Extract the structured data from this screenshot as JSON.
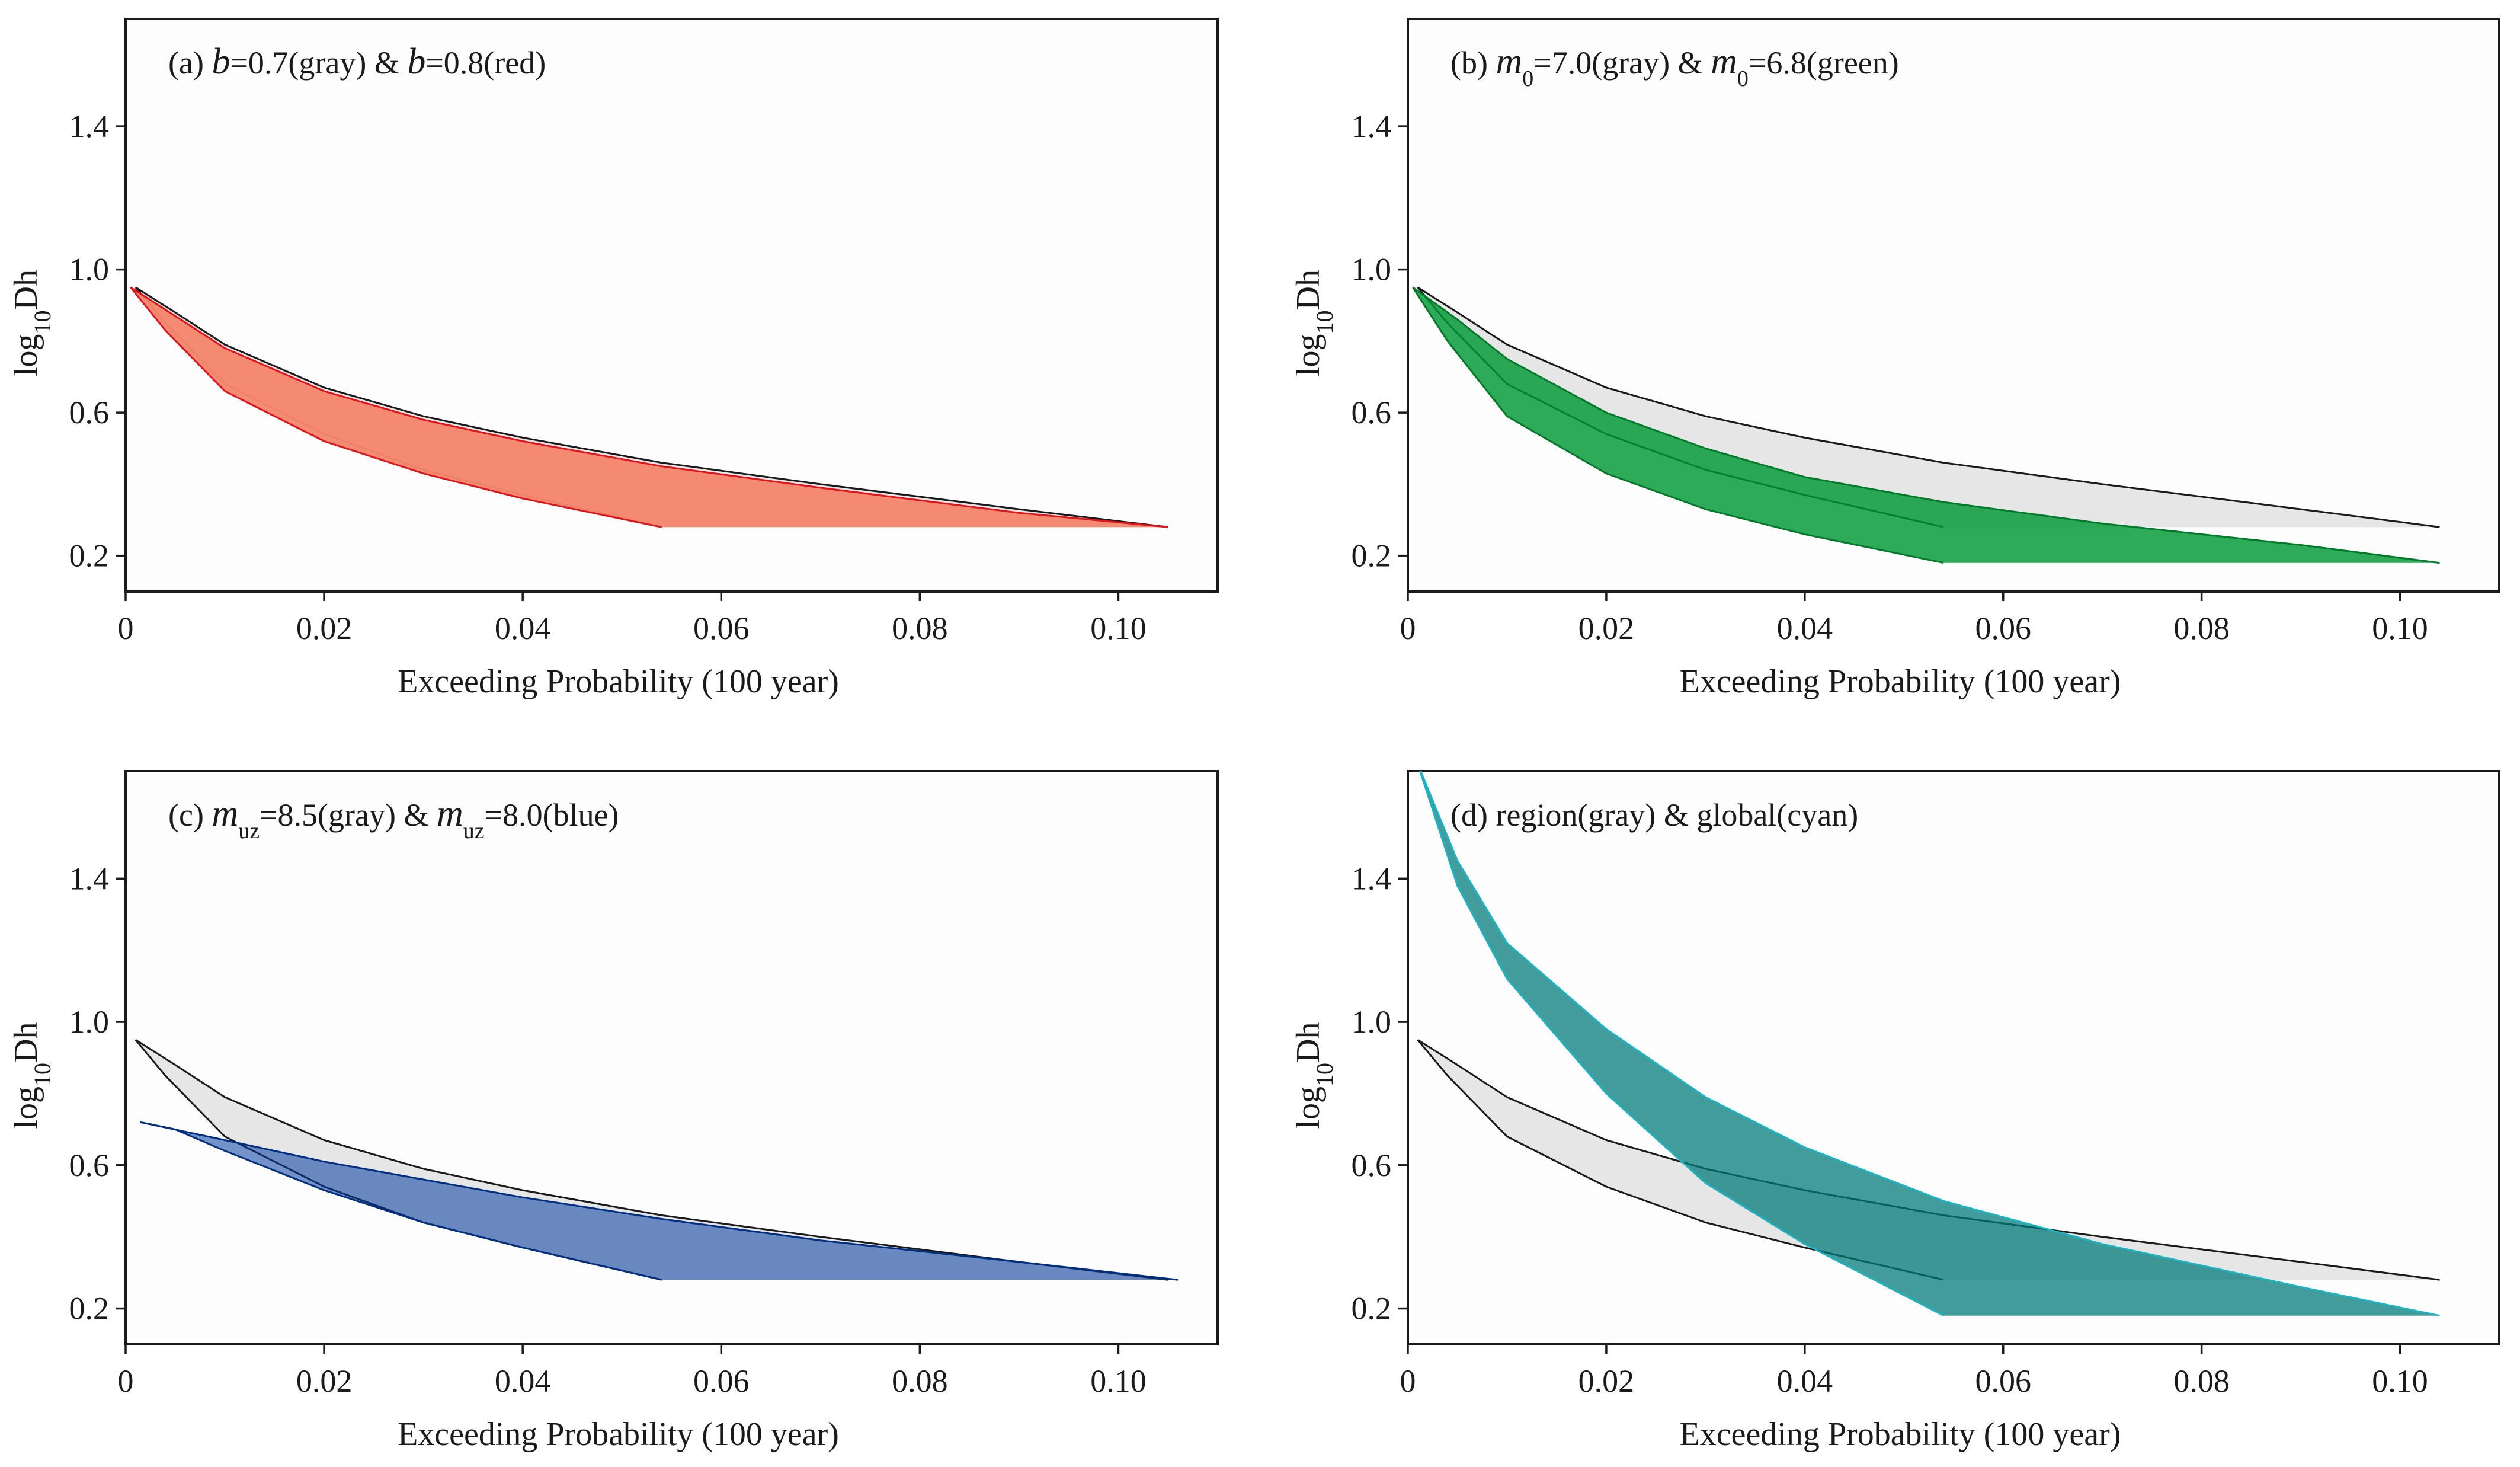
{
  "figure": {
    "background": "#ffffff"
  },
  "chart_data": [
    {
      "type": "area",
      "panel_label": "(a)",
      "title_parts": [
        {
          "t": "(a) "
        },
        {
          "t": "b",
          "style": "italic"
        },
        {
          "t": "=0.7(gray) & "
        },
        {
          "t": "b",
          "style": "italic"
        },
        {
          "t": "=0.8(red)"
        }
      ],
      "xlabel": "Exceeding Probability  (100 year)",
      "ylabel_parts": [
        {
          "t": "log"
        },
        {
          "t": "10",
          "sub": true
        },
        {
          "t": "Dh"
        }
      ],
      "xlim": [
        0,
        0.11
      ],
      "ylim": [
        0.1,
        1.7
      ],
      "xticks": [
        0,
        0.02,
        0.04,
        0.06,
        0.08,
        0.1
      ],
      "xticklabels": [
        "0",
        "0.02",
        "0.04",
        "0.06",
        "0.08",
        "0.10"
      ],
      "yticks": [
        0.2,
        0.6,
        1.0,
        1.4
      ],
      "yticklabels": [
        "0.2",
        "0.6",
        "1.0",
        "1.4"
      ],
      "series": [
        {
          "name": "gray",
          "color": "#e6e6e6",
          "edge": "#1a1a1a",
          "opacity": 1,
          "upper": [
            [
              0.001,
              0.95
            ],
            [
              0.005,
              0.88
            ],
            [
              0.01,
              0.79
            ],
            [
              0.02,
              0.67
            ],
            [
              0.03,
              0.59
            ],
            [
              0.04,
              0.53
            ],
            [
              0.054,
              0.46
            ],
            [
              0.07,
              0.4
            ],
            [
              0.09,
              0.33
            ],
            [
              0.105,
              0.28
            ]
          ],
          "lower": [
            [
              0.001,
              0.95
            ],
            [
              0.004,
              0.85
            ],
            [
              0.01,
              0.68
            ],
            [
              0.02,
              0.54
            ],
            [
              0.03,
              0.44
            ],
            [
              0.04,
              0.37
            ],
            [
              0.054,
              0.28
            ],
            [
              0.105,
              0.28
            ]
          ]
        },
        {
          "name": "red",
          "color": "#f4866c",
          "edge": "#e3131b",
          "opacity": 0.96,
          "upper": [
            [
              0.0005,
              0.95
            ],
            [
              0.005,
              0.87
            ],
            [
              0.01,
              0.78
            ],
            [
              0.02,
              0.66
            ],
            [
              0.03,
              0.58
            ],
            [
              0.04,
              0.52
            ],
            [
              0.054,
              0.45
            ],
            [
              0.07,
              0.39
            ],
            [
              0.09,
              0.32
            ],
            [
              0.105,
              0.28
            ]
          ],
          "lower": [
            [
              0.0005,
              0.95
            ],
            [
              0.004,
              0.83
            ],
            [
              0.01,
              0.66
            ],
            [
              0.02,
              0.52
            ],
            [
              0.03,
              0.43
            ],
            [
              0.04,
              0.36
            ],
            [
              0.054,
              0.28
            ],
            [
              0.105,
              0.28
            ]
          ]
        }
      ]
    },
    {
      "type": "area",
      "panel_label": "(b)",
      "title_parts": [
        {
          "t": "(b) "
        },
        {
          "t": "m",
          "style": "italic"
        },
        {
          "t": "0",
          "sub": true
        },
        {
          "t": "=7.0(gray) & "
        },
        {
          "t": "m",
          "style": "italic"
        },
        {
          "t": "0",
          "sub": true
        },
        {
          "t": "=6.8(green)"
        }
      ],
      "xlabel": "Exceeding Probability  (100 year)",
      "ylabel_parts": [
        {
          "t": "log"
        },
        {
          "t": "10",
          "sub": true
        },
        {
          "t": "Dh"
        }
      ],
      "xlim": [
        0,
        0.11
      ],
      "ylim": [
        0.1,
        1.7
      ],
      "xticks": [
        0,
        0.02,
        0.04,
        0.06,
        0.08,
        0.1
      ],
      "xticklabels": [
        "0",
        "0.02",
        "0.04",
        "0.06",
        "0.08",
        "0.10"
      ],
      "yticks": [
        0.2,
        0.6,
        1.0,
        1.4
      ],
      "yticklabels": [
        "0.2",
        "0.6",
        "1.0",
        "1.4"
      ],
      "series": [
        {
          "name": "gray",
          "color": "#e6e6e6",
          "edge": "#1a1a1a",
          "opacity": 1,
          "upper": [
            [
              0.001,
              0.95
            ],
            [
              0.005,
              0.88
            ],
            [
              0.01,
              0.79
            ],
            [
              0.02,
              0.67
            ],
            [
              0.03,
              0.59
            ],
            [
              0.04,
              0.53
            ],
            [
              0.054,
              0.46
            ],
            [
              0.07,
              0.4
            ],
            [
              0.09,
              0.33
            ],
            [
              0.104,
              0.28
            ]
          ],
          "lower": [
            [
              0.001,
              0.95
            ],
            [
              0.004,
              0.85
            ],
            [
              0.01,
              0.68
            ],
            [
              0.02,
              0.54
            ],
            [
              0.03,
              0.44
            ],
            [
              0.04,
              0.37
            ],
            [
              0.054,
              0.28
            ],
            [
              0.104,
              0.28
            ]
          ]
        },
        {
          "name": "green",
          "color": "#009933",
          "edge": "#007a2a",
          "opacity": 0.82,
          "upper": [
            [
              0.0005,
              0.95
            ],
            [
              0.005,
              0.86
            ],
            [
              0.01,
              0.75
            ],
            [
              0.02,
              0.6
            ],
            [
              0.03,
              0.5
            ],
            [
              0.04,
              0.42
            ],
            [
              0.054,
              0.35
            ],
            [
              0.07,
              0.29
            ],
            [
              0.09,
              0.23
            ],
            [
              0.104,
              0.18
            ]
          ],
          "lower": [
            [
              0.0005,
              0.95
            ],
            [
              0.004,
              0.8
            ],
            [
              0.01,
              0.59
            ],
            [
              0.02,
              0.43
            ],
            [
              0.03,
              0.33
            ],
            [
              0.04,
              0.26
            ],
            [
              0.054,
              0.18
            ],
            [
              0.104,
              0.18
            ]
          ]
        }
      ]
    },
    {
      "type": "area",
      "panel_label": "(c)",
      "title_parts": [
        {
          "t": "(c) "
        },
        {
          "t": "m",
          "style": "italic"
        },
        {
          "t": "uz",
          "sub": true
        },
        {
          "t": "=8.5(gray) & "
        },
        {
          "t": "m",
          "style": "italic"
        },
        {
          "t": "uz",
          "sub": true
        },
        {
          "t": "=8.0(blue)"
        }
      ],
      "xlabel": "Exceeding Probability  (100 year)",
      "ylabel_parts": [
        {
          "t": "log"
        },
        {
          "t": "10",
          "sub": true
        },
        {
          "t": "Dh"
        }
      ],
      "xlim": [
        0,
        0.11
      ],
      "ylim": [
        0.1,
        1.7
      ],
      "xticks": [
        0,
        0.02,
        0.04,
        0.06,
        0.08,
        0.1
      ],
      "xticklabels": [
        "0",
        "0.02",
        "0.04",
        "0.06",
        "0.08",
        "0.10"
      ],
      "yticks": [
        0.2,
        0.6,
        1.0,
        1.4
      ],
      "yticklabels": [
        "0.2",
        "0.6",
        "1.0",
        "1.4"
      ],
      "series": [
        {
          "name": "gray",
          "color": "#e6e6e6",
          "edge": "#1a1a1a",
          "opacity": 1,
          "upper": [
            [
              0.001,
              0.95
            ],
            [
              0.005,
              0.88
            ],
            [
              0.01,
              0.79
            ],
            [
              0.02,
              0.67
            ],
            [
              0.03,
              0.59
            ],
            [
              0.04,
              0.53
            ],
            [
              0.054,
              0.46
            ],
            [
              0.07,
              0.4
            ],
            [
              0.09,
              0.33
            ],
            [
              0.105,
              0.28
            ]
          ],
          "lower": [
            [
              0.001,
              0.95
            ],
            [
              0.004,
              0.85
            ],
            [
              0.01,
              0.68
            ],
            [
              0.02,
              0.54
            ],
            [
              0.03,
              0.44
            ],
            [
              0.04,
              0.37
            ],
            [
              0.054,
              0.28
            ],
            [
              0.105,
              0.28
            ]
          ]
        },
        {
          "name": "blue",
          "color": "#003a9e",
          "edge": "#002e80",
          "opacity": 0.55,
          "upper": [
            [
              0.0015,
              0.72
            ],
            [
              0.01,
              0.67
            ],
            [
              0.02,
              0.61
            ],
            [
              0.03,
              0.56
            ],
            [
              0.04,
              0.51
            ],
            [
              0.054,
              0.45
            ],
            [
              0.07,
              0.39
            ],
            [
              0.09,
              0.33
            ],
            [
              0.106,
              0.28
            ]
          ],
          "lower": [
            [
              0.0015,
              0.72
            ],
            [
              0.005,
              0.7
            ],
            [
              0.01,
              0.64
            ],
            [
              0.02,
              0.53
            ],
            [
              0.03,
              0.44
            ],
            [
              0.04,
              0.37
            ],
            [
              0.054,
              0.28
            ],
            [
              0.106,
              0.28
            ]
          ]
        }
      ]
    },
    {
      "type": "area",
      "panel_label": "(d)",
      "title_parts": [
        {
          "t": "(d) region(gray) & global(cyan)"
        }
      ],
      "xlabel": "Exceeding Probability  (100 year)",
      "ylabel_parts": [
        {
          "t": "log"
        },
        {
          "t": "10",
          "sub": true
        },
        {
          "t": "Dh"
        }
      ],
      "xlim": [
        0,
        0.11
      ],
      "ylim": [
        0.1,
        1.7
      ],
      "xticks": [
        0,
        0.02,
        0.04,
        0.06,
        0.08,
        0.1
      ],
      "xticklabels": [
        "0",
        "0.02",
        "0.04",
        "0.06",
        "0.08",
        "0.10"
      ],
      "yticks": [
        0.2,
        0.6,
        1.0,
        1.4
      ],
      "yticklabels": [
        "0.2",
        "0.6",
        "1.0",
        "1.4"
      ],
      "series": [
        {
          "name": "gray",
          "color": "#e6e6e6",
          "edge": "#1a1a1a",
          "opacity": 1,
          "upper": [
            [
              0.001,
              0.95
            ],
            [
              0.005,
              0.88
            ],
            [
              0.01,
              0.79
            ],
            [
              0.02,
              0.67
            ],
            [
              0.03,
              0.59
            ],
            [
              0.04,
              0.53
            ],
            [
              0.054,
              0.46
            ],
            [
              0.07,
              0.4
            ],
            [
              0.09,
              0.33
            ],
            [
              0.104,
              0.28
            ]
          ],
          "lower": [
            [
              0.001,
              0.95
            ],
            [
              0.004,
              0.85
            ],
            [
              0.01,
              0.68
            ],
            [
              0.02,
              0.54
            ],
            [
              0.03,
              0.44
            ],
            [
              0.04,
              0.37
            ],
            [
              0.054,
              0.28
            ],
            [
              0.104,
              0.28
            ]
          ]
        },
        {
          "name": "cyan",
          "color": "#007a7a",
          "edge": "#1fb3c2",
          "opacity": 0.74,
          "upper": [
            [
              0.001,
              1.72
            ],
            [
              0.005,
              1.45
            ],
            [
              0.01,
              1.22
            ],
            [
              0.02,
              0.98
            ],
            [
              0.03,
              0.79
            ],
            [
              0.04,
              0.65
            ],
            [
              0.054,
              0.5
            ],
            [
              0.07,
              0.38
            ],
            [
              0.09,
              0.26
            ],
            [
              0.104,
              0.18
            ]
          ],
          "lower": [
            [
              0.001,
              1.72
            ],
            [
              0.005,
              1.38
            ],
            [
              0.01,
              1.12
            ],
            [
              0.02,
              0.8
            ],
            [
              0.03,
              0.55
            ],
            [
              0.04,
              0.38
            ],
            [
              0.054,
              0.18
            ],
            [
              0.104,
              0.18
            ]
          ]
        }
      ]
    }
  ]
}
